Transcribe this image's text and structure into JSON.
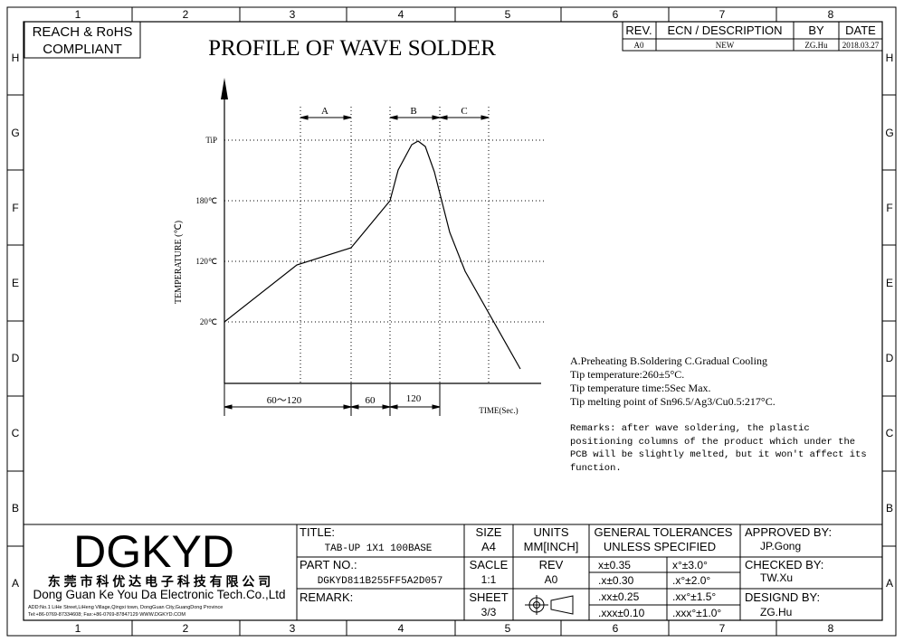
{
  "frame": {
    "cols_top": [
      "1",
      "2",
      "3",
      "4",
      "5",
      "6",
      "7",
      "8"
    ],
    "cols_bottom": [
      "1",
      "2",
      "3",
      "4",
      "5",
      "6",
      "7",
      "8"
    ],
    "rows": [
      "H",
      "G",
      "F",
      "E",
      "D",
      "C",
      "B",
      "A"
    ]
  },
  "compliance": {
    "line1": "REACH & RoHS",
    "line2": "COMPLIANT"
  },
  "drawing_title": "PROFILE OF WAVE SOLDER",
  "revision": {
    "headers": {
      "rev": "REV.",
      "ecn": "ECN / DESCRIPTION",
      "by": "BY",
      "date": "DATE"
    },
    "row": {
      "rev": "A0",
      "ecn": "NEW",
      "by": "ZG.Hu",
      "date": "2018.03.27"
    }
  },
  "chart_data": {
    "type": "line",
    "ylabel": "TEMPERATURE (℃)",
    "xlabel": "TIME(Sec.)",
    "y_ticks": [
      "20℃",
      "120℃",
      "180℃",
      "TiP"
    ],
    "zones": [
      "A",
      "B",
      "C"
    ],
    "durations": [
      "60～120",
      "60",
      "120"
    ]
  },
  "notes": {
    "legend": "A.Preheating  B.Soldering  C.Gradual Cooling",
    "tip_temp": "Tip temperature:260±5°C.",
    "tip_time": "Tip temperature time:5Sec Max.",
    "tip_melt": "Tip melting point of Sn96.5/Ag3/Cu0.5:217°C.",
    "remarks": [
      "Remarks: after wave soldering, the plastic",
      "positioning columns of the product  which under the",
      "PCB will be slightly melted, but it won't affect its",
      "function."
    ]
  },
  "title_block": {
    "logo": "DGKYD",
    "company_cn": "东 莞 市 科 优 达 电 子 科 技 有 限 公 司",
    "company_en": "Dong Guan Ke You Da Electronic Tech.Co.,Ltd",
    "address": "ADD:No.1 LiHe Street,LiHeng Village,Qingxi town, DongGuan City,GuangDong Province",
    "contact": "Tel:+86-0769-87334608; Fax:+86-0769-87847129  WWW.DGKYD.COM",
    "title_label": "TITLE:",
    "title_value": "TAB-UP 1X1 100BASE",
    "part_label": "PART NO.:",
    "part_value": "DGKYD811B255FF5A2D057",
    "remark_label": "REMARK:",
    "size_label": "SIZE",
    "size_value": "A4",
    "units_label": "UNITS",
    "units_value": "MM[INCH]",
    "scale_label": "SACLE",
    "scale_value": "1:1",
    "rev_label": "REV",
    "rev_value": "A0",
    "sheet_label": "SHEET",
    "sheet_value": "3/3",
    "tol_line1": "GENERAL TOLERANCES",
    "tol_line2": "UNLESS SPECIFIED",
    "tol": [
      {
        "lin": "x±0.35",
        "ang": "x°±3.0°"
      },
      {
        "lin": ".x±0.30",
        "ang": ".x°±2.0°"
      },
      {
        "lin": ".xx±0.25",
        "ang": ".xx°±1.5°"
      },
      {
        "lin": ".xxx±0.10",
        "ang": ".xxx°±1.0°"
      }
    ],
    "approved_label": "APPROVED BY:",
    "approved_value": "JP.Gong",
    "checked_label": "CHECKED BY:",
    "checked_value": "TW.Xu",
    "designed_label": "DESIGND BY:",
    "designed_value": "ZG.Hu"
  }
}
